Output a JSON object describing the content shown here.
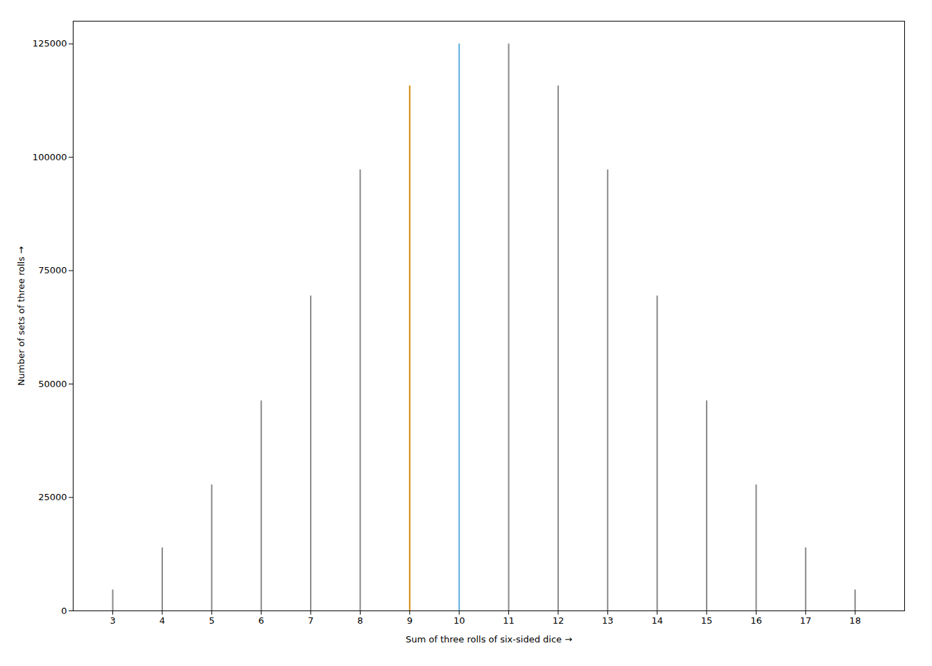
{
  "chart_data": {
    "type": "spike",
    "x": [
      3,
      4,
      5,
      6,
      7,
      8,
      9,
      10,
      11,
      12,
      13,
      14,
      15,
      16,
      17,
      18
    ],
    "values": [
      4630,
      13889,
      27778,
      46296,
      69444,
      97222,
      115741,
      125000,
      125000,
      115741,
      97222,
      69444,
      46296,
      27778,
      13889,
      4630
    ],
    "colors": [
      "#888888",
      "#888888",
      "#888888",
      "#888888",
      "#888888",
      "#888888",
      "#d4890a",
      "#5aadde",
      "#888888",
      "#888888",
      "#888888",
      "#888888",
      "#888888",
      "#888888",
      "#888888",
      "#888888"
    ],
    "xlabel": "Sum of three rolls of six-sided dice",
    "ylabel": "Number of sets of three rolls",
    "xlim": [
      2.2,
      19.0
    ],
    "ylim": [
      0,
      130000
    ],
    "xticks": [
      3,
      4,
      5,
      6,
      7,
      8,
      9,
      10,
      11,
      12,
      13,
      14,
      15,
      16,
      17,
      18
    ],
    "yticks": [
      0,
      25000,
      50000,
      75000,
      100000,
      125000
    ],
    "grid": false
  }
}
